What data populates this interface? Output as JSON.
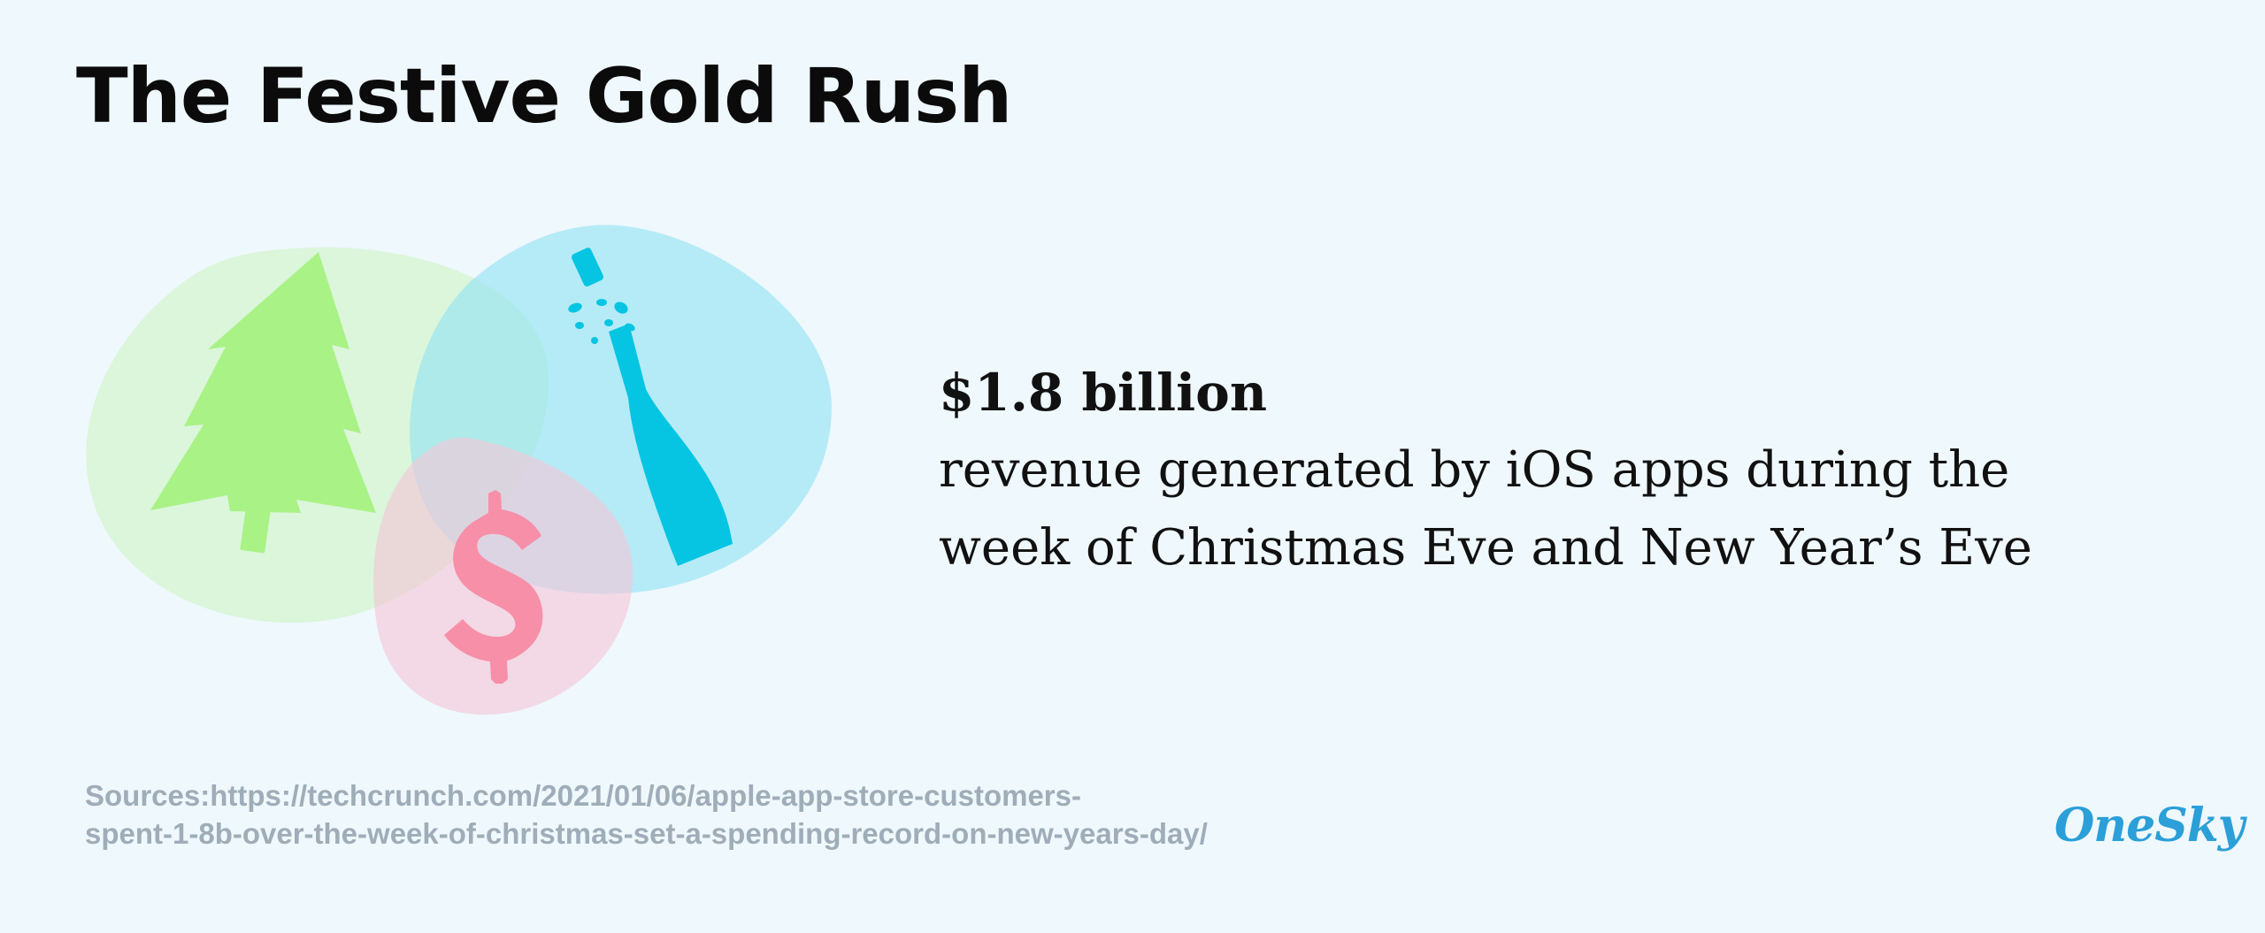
{
  "title": "The Festive Gold Rush",
  "stat": {
    "value": "$1.8 billion",
    "description_line1": "revenue generated by iOS apps during the",
    "description_line2": "week of Christmas Eve and New Year’s Eve"
  },
  "sources": {
    "line1": "Sources:https://techcrunch.com/2021/01/06/apple-app-store-customers-",
    "line2": "spent-1-8b-over-the-week-of-christmas-set-a-spending-record-on-new-years-day/"
  },
  "brand": {
    "name": "OneSky"
  },
  "illustration": {
    "icons": [
      "christmas-tree-icon",
      "champagne-bottle-icon",
      "dollar-sign-icon"
    ],
    "colors": {
      "background": "#eff8fd",
      "tree": "#a9f285",
      "tree_blob": "#d4f5cf",
      "bottle": "#06c5e3",
      "bottle_blob": "#8ee3f2",
      "dollar": "#f78fa8",
      "dollar_blob": "#f3c8d8",
      "brand": "#2b9fd7",
      "sources_text": "#9fadb8"
    }
  }
}
